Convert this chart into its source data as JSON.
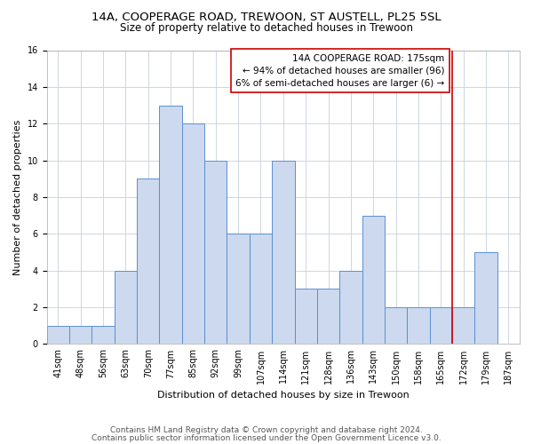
{
  "title1": "14A, COOPERAGE ROAD, TREWOON, ST AUSTELL, PL25 5SL",
  "title2": "Size of property relative to detached houses in Trewoon",
  "xlabel": "Distribution of detached houses by size in Trewoon",
  "ylabel": "Number of detached properties",
  "categories": [
    "41sqm",
    "48sqm",
    "56sqm",
    "63sqm",
    "70sqm",
    "77sqm",
    "85sqm",
    "92sqm",
    "99sqm",
    "107sqm",
    "114sqm",
    "121sqm",
    "128sqm",
    "136sqm",
    "143sqm",
    "150sqm",
    "158sqm",
    "165sqm",
    "172sqm",
    "179sqm",
    "187sqm"
  ],
  "values": [
    1,
    1,
    1,
    4,
    9,
    13,
    12,
    10,
    6,
    6,
    10,
    3,
    3,
    4,
    7,
    2,
    2,
    2,
    2,
    5,
    0
  ],
  "bar_color": "#ccd9ee",
  "bar_edge_color": "#5b8fd4",
  "grid_color": "#c8d0dc",
  "annotation_text": "14A COOPERAGE ROAD: 175sqm\n← 94% of detached houses are smaller (96)\n6% of semi-detached houses are larger (6) →",
  "annotation_box_color": "#ffffff",
  "annotation_box_edge_color": "#cc0000",
  "ref_line_color": "#cc0000",
  "ref_line_index": 17.5,
  "ylim": [
    0,
    16
  ],
  "yticks": [
    0,
    2,
    4,
    6,
    8,
    10,
    12,
    14,
    16
  ],
  "footer1": "Contains HM Land Registry data © Crown copyright and database right 2024.",
  "footer2": "Contains public sector information licensed under the Open Government Licence v3.0.",
  "title1_fontsize": 9.5,
  "title2_fontsize": 8.5,
  "xlabel_fontsize": 8,
  "ylabel_fontsize": 8,
  "tick_fontsize": 7,
  "footer_fontsize": 6.5,
  "annotation_fontsize": 7.5
}
